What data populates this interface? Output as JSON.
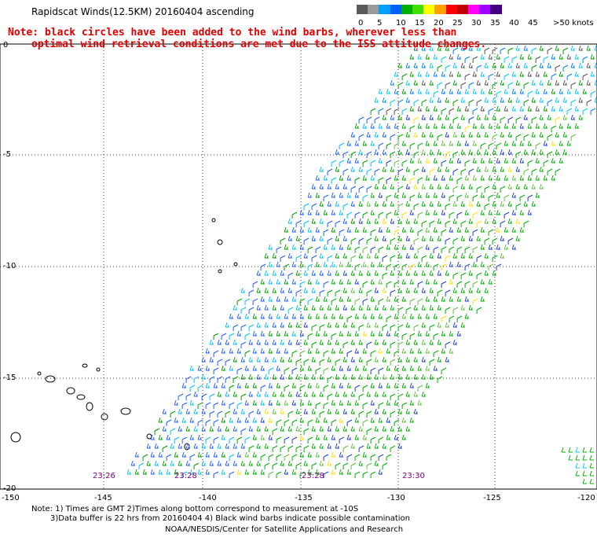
{
  "title": "Rapidscat Winds(12.5KM) 20160404 ascending",
  "note_lines": [
    "Note: black circles have been added to the wind barbs, wherever less than",
    "optimal wind retrieval conditions are met due to the ISS attitude changes."
  ],
  "colorbar": {
    "labels": [
      "0",
      "5",
      "10",
      "15",
      "20",
      "25",
      "30",
      "35",
      "40",
      "45",
      ">50 knots"
    ],
    "colors": [
      "#5a5a5a",
      "#9a9a9a",
      "#00a0ff",
      "#0060ff",
      "#00b000",
      "#40e000",
      "#ffff00",
      "#ffa000",
      "#ff0000",
      "#c00000",
      "#ff00ff",
      "#a000ff",
      "#400080"
    ]
  },
  "lat_labels": [
    "0",
    "-5",
    "-10",
    "-15",
    "-20"
  ],
  "lon_labels": [
    "-150",
    "-145",
    "-140",
    "-135",
    "-130",
    "-125",
    "-120"
  ],
  "time_labels": [
    "23:26",
    "23:28",
    "23:28",
    "23:30"
  ],
  "footnotes": [
    "Note: 1) Times are GMT 2)Times along bottom correspond to measurement at -10S",
    "3)Data buffer is 22 hrs from 20160404 4) Black wind barbs indicate possible contamination",
    "NOAA/NESDIS/Center for Satellite Applications and Research"
  ]
}
